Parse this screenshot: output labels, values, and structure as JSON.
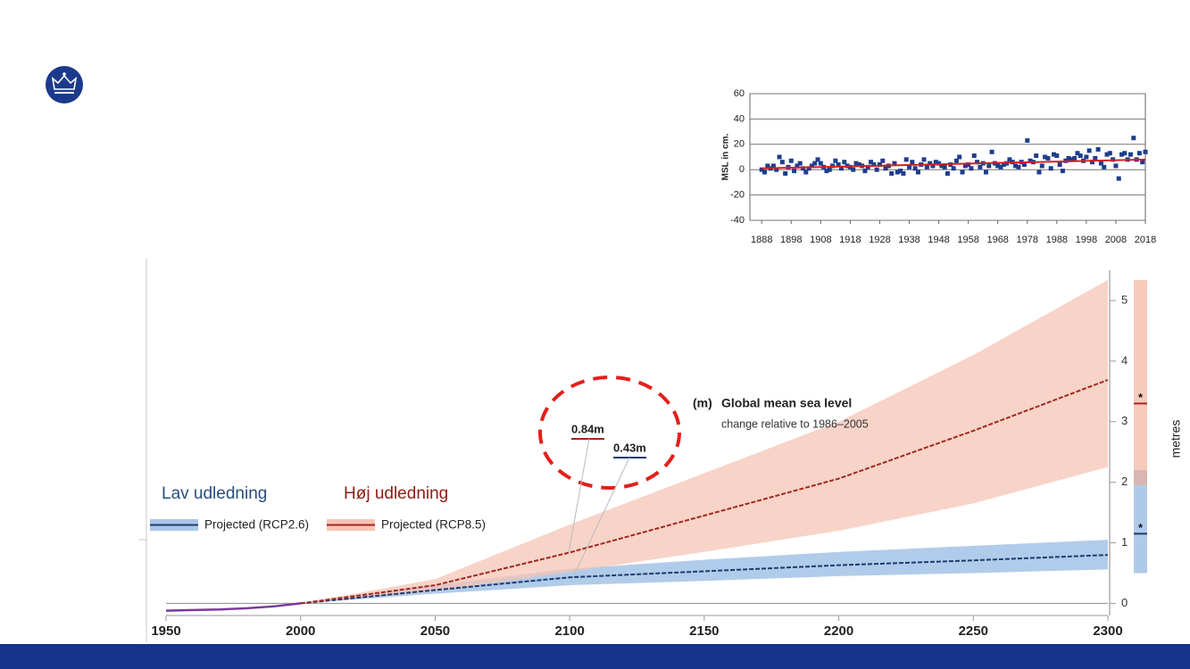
{
  "chart_data": [
    {
      "type": "scatter",
      "ylabel": "MSL in cm.",
      "x": [
        1888,
        1889,
        1890,
        1891,
        1892,
        1893,
        1894,
        1895,
        1896,
        1897,
        1898,
        1899,
        1900,
        1901,
        1902,
        1903,
        1904,
        1905,
        1906,
        1907,
        1908,
        1909,
        1910,
        1911,
        1912,
        1913,
        1914,
        1915,
        1916,
        1917,
        1918,
        1919,
        1920,
        1921,
        1922,
        1923,
        1924,
        1925,
        1926,
        1927,
        1928,
        1929,
        1930,
        1931,
        1932,
        1933,
        1934,
        1935,
        1936,
        1937,
        1938,
        1939,
        1940,
        1941,
        1942,
        1943,
        1944,
        1945,
        1946,
        1947,
        1948,
        1949,
        1950,
        1951,
        1952,
        1953,
        1954,
        1955,
        1956,
        1957,
        1958,
        1959,
        1960,
        1961,
        1962,
        1963,
        1964,
        1965,
        1966,
        1967,
        1968,
        1969,
        1970,
        1971,
        1972,
        1973,
        1974,
        1975,
        1976,
        1977,
        1978,
        1979,
        1980,
        1981,
        1982,
        1983,
        1984,
        1985,
        1986,
        1987,
        1988,
        1989,
        1990,
        1991,
        1992,
        1993,
        1994,
        1995,
        1996,
        1997,
        1998,
        1999,
        2000,
        2001,
        2002,
        2003,
        2004,
        2005,
        2006,
        2007,
        2008,
        2009,
        2010,
        2011,
        2012,
        2013,
        2014,
        2015,
        2016,
        2017,
        2018
      ],
      "series": [
        {
          "color": "#1f3d8c",
          "values": [
            0,
            -2,
            3,
            1,
            3,
            0,
            10,
            6,
            -3,
            2,
            7,
            -1,
            3,
            5,
            1,
            -2,
            1,
            3,
            5,
            8,
            5,
            2,
            -1,
            0,
            3,
            7,
            4,
            1,
            6,
            3,
            2,
            0,
            5,
            4,
            3,
            -1,
            2,
            6,
            4,
            0,
            4,
            7,
            1,
            3,
            -3,
            5,
            -2,
            -1,
            -3,
            8,
            2,
            6,
            1,
            -2,
            4,
            8,
            2,
            5,
            3,
            6,
            5,
            3,
            2,
            -3,
            4,
            1,
            7,
            10,
            -2,
            3,
            4,
            1,
            11,
            6,
            2,
            5,
            -2,
            3,
            14,
            5,
            3,
            2,
            4,
            5,
            8,
            6,
            3,
            2,
            6,
            4,
            23,
            7,
            6,
            11,
            -2,
            3,
            10,
            9,
            1,
            12,
            11,
            4,
            -1,
            7,
            9,
            8,
            9,
            13,
            11,
            7,
            10,
            15,
            6,
            9,
            16,
            5,
            2,
            12,
            13,
            8,
            3,
            -7,
            12,
            13,
            8,
            12,
            25,
            8,
            13,
            6,
            14
          ]
        }
      ],
      "trend": {
        "color": "#d62020",
        "x": [
          1888,
          2018
        ],
        "values": [
          1,
          8
        ]
      },
      "xlim": [
        1884,
        2018
      ],
      "ylim": [
        -40,
        60
      ],
      "xticks": [
        1888,
        1898,
        1908,
        1918,
        1928,
        1938,
        1948,
        1958,
        1968,
        1978,
        1988,
        1998,
        2008,
        2018
      ],
      "yticks": [
        -40,
        -20,
        0,
        20,
        40,
        60
      ],
      "grid": true
    },
    {
      "type": "line",
      "title_prefix": "(m)",
      "title": "Global mean sea level",
      "subtitle": "change relative to 1986–2005",
      "ylabel": "metres",
      "x": [
        1950,
        2000,
        2050,
        2100,
        2150,
        2200,
        2250,
        2300
      ],
      "historical": {
        "color": "#7a3a9a",
        "x": [
          1950,
          1960,
          1970,
          1980,
          1990,
          2000
        ],
        "values": [
          -0.12,
          -0.11,
          -0.1,
          -0.08,
          -0.05,
          0
        ]
      },
      "series": [
        {
          "name": "Projected (RCP2.6)",
          "group": "Lav udledning",
          "color": "#1f3a6e",
          "band_color": "#a9c6e8",
          "values": [
            null,
            0,
            0.22,
            0.43,
            0.53,
            0.63,
            0.71,
            0.8
          ],
          "lower": [
            null,
            0,
            0.16,
            0.3,
            0.37,
            0.45,
            0.5,
            0.56
          ],
          "upper": [
            null,
            0,
            0.3,
            0.57,
            0.72,
            0.85,
            0.95,
            1.05
          ],
          "callout": {
            "value": 0.43,
            "label": "0.43m"
          },
          "bar_range": [
            0.5,
            2.2
          ],
          "bar_median": 1.15,
          "bar_marker": "*"
        },
        {
          "name": "Projected (RCP8.5)",
          "group": "Høj udledning",
          "color": "#a0281e",
          "band_color": "#f6c4b6",
          "values": [
            null,
            0,
            0.3,
            0.84,
            1.45,
            2.06,
            2.85,
            3.69
          ],
          "lower": [
            null,
            0,
            0.2,
            0.52,
            0.85,
            1.2,
            1.65,
            2.25
          ],
          "upper": [
            null,
            0,
            0.4,
            1.3,
            2.15,
            3.0,
            4.1,
            5.34
          ],
          "callout": {
            "value": 0.84,
            "label": "0.84m"
          },
          "bar_range": [
            1.95,
            5.34
          ],
          "bar_median": 3.3,
          "bar_marker": "*"
        }
      ],
      "xlim": [
        1950,
        2300
      ],
      "ylim": [
        -0.2,
        5.5
      ],
      "xticks": [
        1950,
        2000,
        2050,
        2100,
        2150,
        2200,
        2250,
        2300
      ],
      "yticks": [
        0,
        1,
        2,
        3,
        4,
        5
      ]
    }
  ]
}
